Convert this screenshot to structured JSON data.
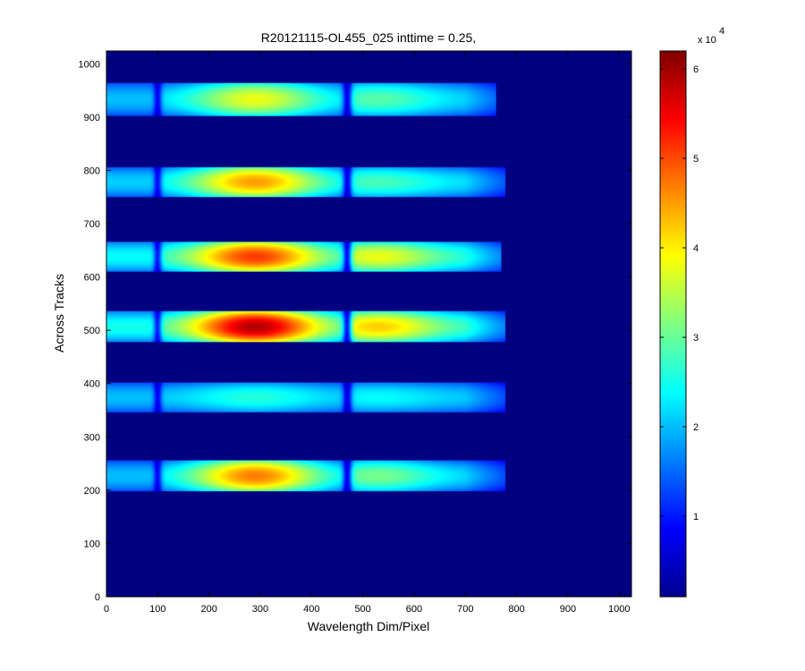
{
  "chart_data": {
    "type": "heatmap",
    "title": "R20121115-OL455_025 inttime = 0.25,",
    "xlabel": "Wavelength Dim/Pixel",
    "ylabel": "Across Tracks",
    "xlim": [
      0,
      1024
    ],
    "ylim": [
      0,
      1024
    ],
    "x_ticks": [
      0,
      100,
      200,
      300,
      400,
      500,
      600,
      700,
      800,
      900,
      1000
    ],
    "y_ticks": [
      0,
      100,
      200,
      300,
      400,
      500,
      600,
      700,
      800,
      900,
      1000
    ],
    "colormap": "jet",
    "colorbar": {
      "range": [
        1000,
        62000
      ],
      "ticks": [
        1,
        2,
        3,
        4,
        5,
        6
      ],
      "exponent_base": "x 10",
      "exponent_power": "4"
    },
    "background_value": 1000,
    "dips": [
      {
        "center": 100,
        "width": 8,
        "depth": 0.6
      },
      {
        "center": 470,
        "width": 9,
        "depth": 0.7
      }
    ],
    "bands": [
      {
        "y_range": [
          198,
          255
        ],
        "x_range": [
          0,
          778
        ],
        "peak_value": 47000,
        "level_left": 20000,
        "level_right": 31000
      },
      {
        "y_range": [
          346,
          402
        ],
        "x_range": [
          0,
          778
        ],
        "peak_value": 26000,
        "level_left": 20000,
        "level_right": 24000
      },
      {
        "y_range": [
          478,
          535
        ],
        "x_range": [
          0,
          778
        ],
        "peak_value": 59000,
        "level_left": 25000,
        "level_right": 42000
      },
      {
        "y_range": [
          610,
          666
        ],
        "x_range": [
          0,
          770
        ],
        "peak_value": 51000,
        "level_left": 24000,
        "level_right": 38000
      },
      {
        "y_range": [
          750,
          806
        ],
        "x_range": [
          0,
          778
        ],
        "peak_value": 45000,
        "level_left": 21000,
        "level_right": 28000
      },
      {
        "y_range": [
          903,
          964
        ],
        "x_range": [
          0,
          760
        ],
        "peak_value": 38000,
        "level_left": 20000,
        "level_right": 29000
      }
    ]
  }
}
